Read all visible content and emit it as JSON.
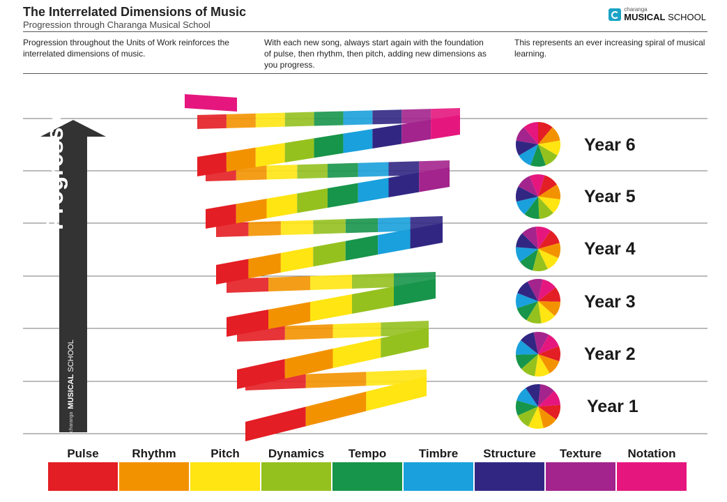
{
  "header": {
    "title": "The Interrelated Dimensions of Music",
    "subtitle": "Progression through Charanga Musical School",
    "logo_small": "charanga",
    "logo_big_bold": "MUSICAL",
    "logo_big_rest": " SCHOOL"
  },
  "intro": {
    "col1": "Progression throughout the Units of Work reinforces the interrelated dimensions of music.",
    "col2": "With each new song, always start again with the foundation of pulse, then rhythm, then pitch, adding new dimensions as you progress.",
    "col3": "This represents an ever increasing spiral of musical learning."
  },
  "arrow": {
    "label": "Progression",
    "logo_small": "charanga",
    "logo_big_bold": "MUSICAL",
    "logo_big_rest": " SCHOOL"
  },
  "years": [
    "Year 6",
    "Year 5",
    "Year 4",
    "Year 3",
    "Year 2",
    "Year 1"
  ],
  "dimensions": [
    {
      "name": "Pulse",
      "color": "#e31e24"
    },
    {
      "name": "Rhythm",
      "color": "#f39200"
    },
    {
      "name": "Pitch",
      "color": "#ffe512"
    },
    {
      "name": "Dynamics",
      "color": "#95c11f"
    },
    {
      "name": "Tempo",
      "color": "#17954a"
    },
    {
      "name": "Timbre",
      "color": "#1aa0dc"
    },
    {
      "name": "Structure",
      "color": "#312783"
    },
    {
      "name": "Texture",
      "color": "#a3248c"
    },
    {
      "name": "Notation",
      "color": "#e5177e"
    }
  ]
}
